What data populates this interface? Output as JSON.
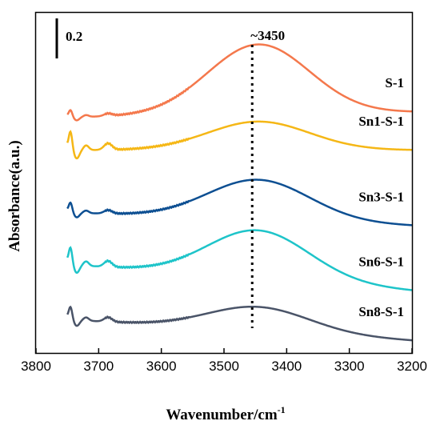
{
  "chart_data": {
    "type": "line",
    "xlabel": "Wavenumber/cm",
    "xlabel_sup": "-1",
    "ylabel": "Absorbance(a.u.)",
    "xlim": [
      3800,
      3200
    ],
    "x_reversed": true,
    "xticks": [
      3800,
      3700,
      3600,
      3500,
      3400,
      3300,
      3200
    ],
    "y_ticks_shown": false,
    "grid": false,
    "legend": "none",
    "scale_bar": {
      "label": "0.2",
      "value": 0.2
    },
    "annotations": [
      {
        "text": "~3450",
        "x": 3455,
        "style": "dotted-vertical-line"
      }
    ],
    "series": [
      {
        "name": "S-1",
        "color": "#f4784c",
        "offset": 0.72,
        "peak": 0.49,
        "baseline": -0.02,
        "sharp": 0.05
      },
      {
        "name": "Sn1-S-1",
        "color": "#f5b716",
        "offset": 0.53,
        "peak": 0.2,
        "baseline": 0.0,
        "sharp": 0.13
      },
      {
        "name": "Sn3-S-1",
        "color": "#0d4f92",
        "offset": 0.01,
        "peak": 0.28,
        "baseline": 0.05,
        "sharp": 0.07
      },
      {
        "name": "Sn6-S-1",
        "color": "#1ec4c9",
        "offset": -0.36,
        "peak": 0.34,
        "baseline": 0.1,
        "sharp": 0.12
      },
      {
        "name": "Sn8-S-1",
        "color": "#4a5468",
        "offset": -0.75,
        "peak": 0.17,
        "baseline": 0.08,
        "sharp": 0.09
      }
    ]
  }
}
